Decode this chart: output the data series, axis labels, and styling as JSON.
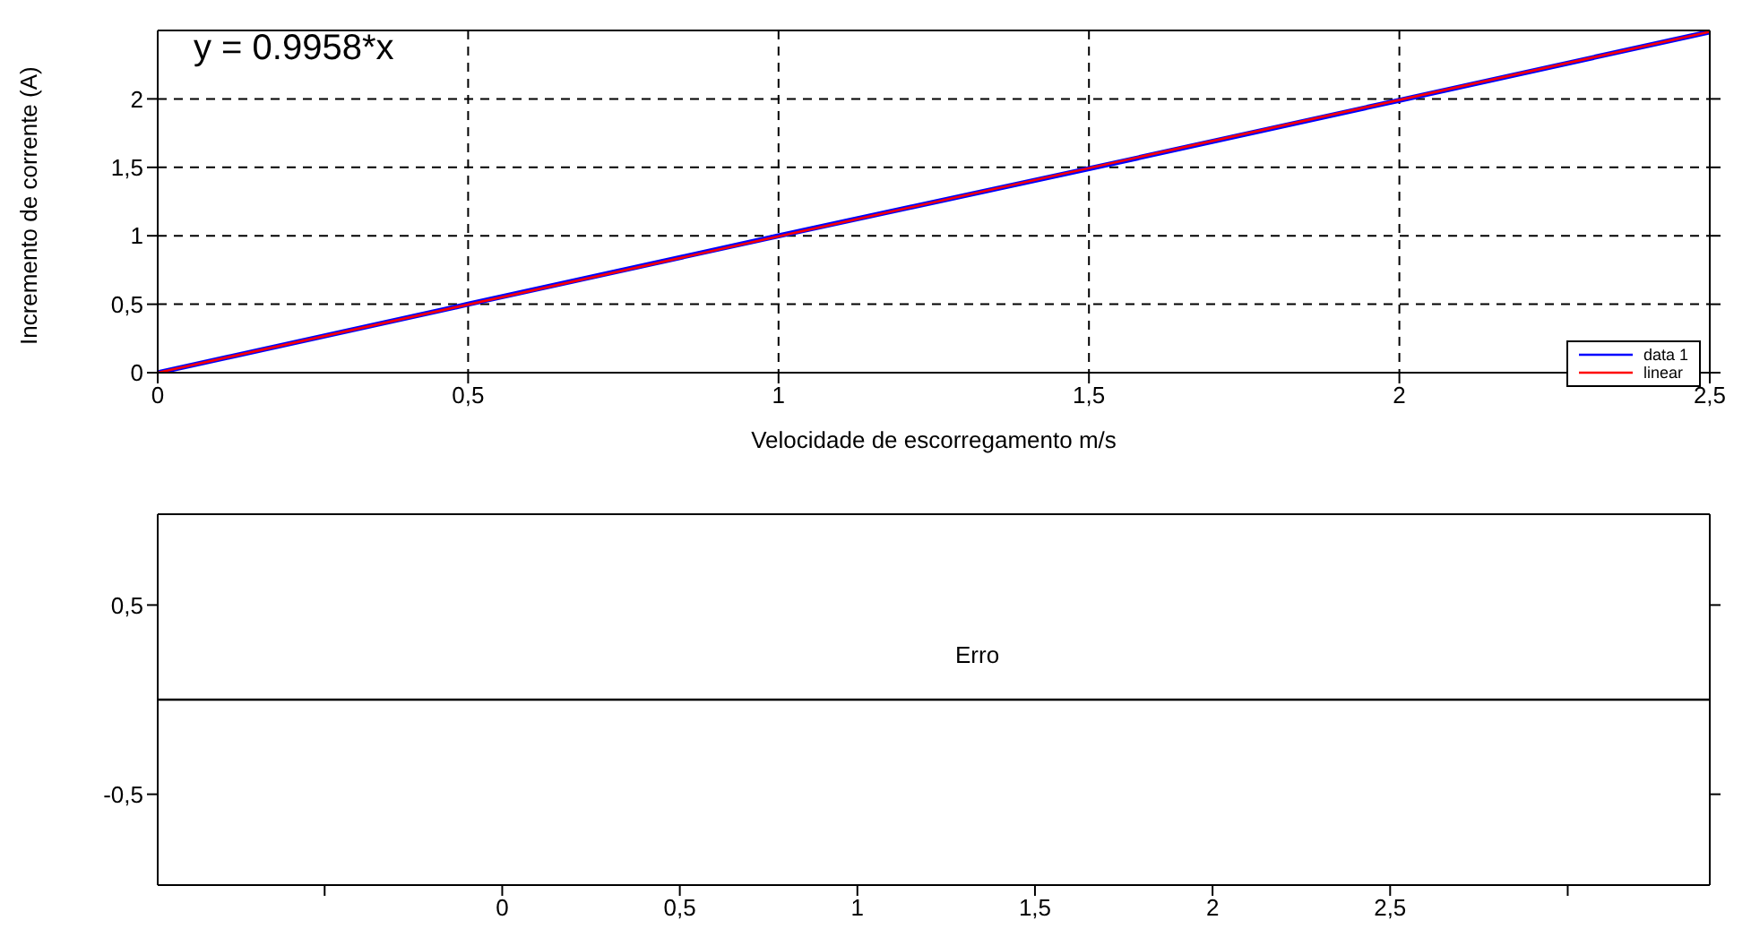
{
  "chart_data": [
    {
      "type": "line",
      "xlabel": "Velocidade de escorregamento m/s",
      "ylabel": "Incremento de corrente (A)",
      "annotations": [
        "y = 0.9958*x"
      ],
      "series": [
        {
          "name": "data 1",
          "color": "#0000ff",
          "x": [
            0,
            0.5,
            1,
            1.5,
            2,
            2.5
          ],
          "values": [
            0,
            0.5,
            1,
            1.49,
            1.99,
            2.49
          ]
        },
        {
          "name": "linear",
          "color": "#ff0000",
          "x": [
            0,
            2.5
          ],
          "values": [
            0,
            2.49
          ]
        }
      ],
      "xlim": [
        0,
        2.5
      ],
      "xticks": [
        0,
        {
          "value": 0.5,
          "label": "0,5"
        },
        1,
        {
          "value": 1.5,
          "label": "1,5"
        },
        2,
        {
          "value": 2.5,
          "label": "2,5"
        }
      ],
      "ylim": [
        0,
        2.5
      ],
      "yticks": [
        0,
        {
          "value": 0.5,
          "label": "0,5"
        },
        1,
        {
          "value": 1.5,
          "label": "1,5"
        },
        2
      ],
      "grid": true,
      "legend": "bottom right",
      "line_style": "solid",
      "marker": "none"
    },
    {
      "type": "line",
      "annotations": [
        "Erro"
      ],
      "ref_lines": [
        {
          "axis": "y",
          "value": 0,
          "color": "#000000"
        }
      ],
      "xlim": [
        -0.97,
        3.4
      ],
      "xticks": [
        {
          "value": -0.5,
          "label": null
        },
        0,
        {
          "value": 0.5,
          "label": "0,5"
        },
        1,
        {
          "value": 1.5,
          "label": "1,5"
        },
        2,
        {
          "value": 2.5,
          "label": "2,5"
        },
        {
          "value": 3,
          "label": null
        }
      ],
      "ylim": [
        -0.98,
        0.98
      ],
      "yticks": [
        {
          "value": -0.5,
          "label": "-0,5"
        },
        {
          "value": 0.5,
          "label": "0,5"
        }
      ],
      "grid": false,
      "legend": false
    }
  ]
}
